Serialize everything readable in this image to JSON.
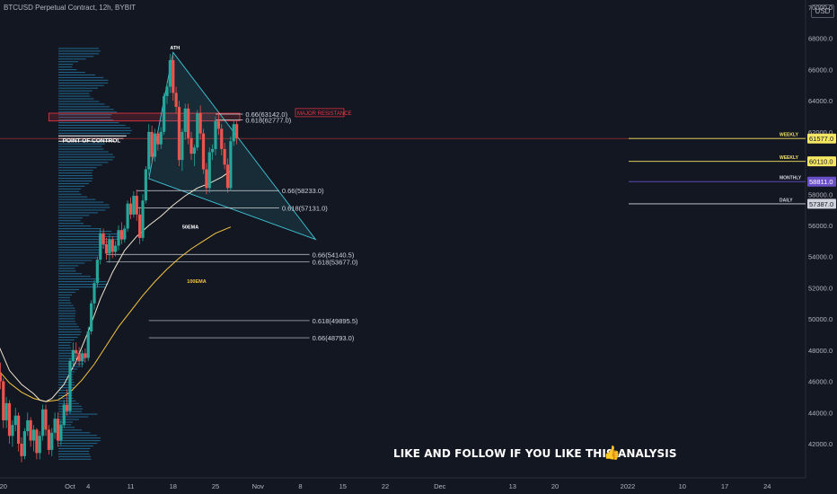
{
  "header": {
    "title": "BTCUSD Perpetual Contract, 12h, BYBIT",
    "currency": "USD"
  },
  "footer_text": "LIKE AND FOLLOW IF YOU LIKE THIS ANALYSIS",
  "chart_data": {
    "type": "candlestick",
    "ylim": [
      40500,
      70000
    ],
    "y_ticks": [
      42000,
      44000,
      46000,
      48000,
      50000,
      52000,
      54000,
      56000,
      58000,
      60000,
      62000,
      64000,
      66000,
      68000,
      70000
    ],
    "y_tick_labels": [
      "42000.0",
      "44000.0",
      "46000.0",
      "48000.0",
      "50000.0",
      "52000.0",
      "54000.0",
      "56000.0",
      "58000.0",
      "60000.0",
      "62000.0",
      "64000.0",
      "66000.0",
      "68000.0",
      "70000.0"
    ],
    "x_ticks": [
      {
        "label": "20",
        "day": -11
      },
      {
        "label": "Oct",
        "day": 0
      },
      {
        "label": "4",
        "day": 3
      },
      {
        "label": "11",
        "day": 10
      },
      {
        "label": "18",
        "day": 17
      },
      {
        "label": "25",
        "day": 24
      },
      {
        "label": "Nov",
        "day": 31
      },
      {
        "label": "8",
        "day": 38
      },
      {
        "label": "15",
        "day": 45
      },
      {
        "label": "22",
        "day": 52
      },
      {
        "label": "Dec",
        "day": 61
      },
      {
        "label": "13",
        "day": 73
      },
      {
        "label": "20",
        "day": 80
      },
      {
        "label": "2022",
        "day": 92
      },
      {
        "label": "10",
        "day": 101
      },
      {
        "label": "17",
        "day": 108
      },
      {
        "label": "24",
        "day": 115
      },
      {
        "label": "Feb",
        "day": 123
      }
    ],
    "current_price_line": 61577,
    "price_labels": [
      {
        "tag": "WEEKLY",
        "value": 61577,
        "label": "61577.0",
        "color": "#f5e663"
      },
      {
        "tag": "WEEKLY",
        "value": 60110,
        "label": "60110.0",
        "color": "#f5e663"
      },
      {
        "tag": "MONTHLY",
        "value": 58811,
        "label": "58811.0",
        "color": "#6a4fc9"
      },
      {
        "tag": "DAILY",
        "value": 57387,
        "label": "57387.0",
        "color": "#d1d4dc"
      }
    ],
    "fib_levels": [
      {
        "label": "0.66(63142.0)",
        "value": 63142,
        "from_day": 24,
        "to_day": 28.5
      },
      {
        "label": "0.618(62777.0)",
        "value": 62777,
        "from_day": 24,
        "to_day": 28.5
      },
      {
        "label": "0.66(58233.0)",
        "value": 58233,
        "from_day": 11,
        "to_day": 34.5
      },
      {
        "label": "0.618(57131.0)",
        "value": 57131,
        "from_day": 11,
        "to_day": 34.5
      },
      {
        "label": "0.66(54140.5)",
        "value": 54140.5,
        "from_day": 6,
        "to_day": 39.5
      },
      {
        "label": "0.618(53677.0)",
        "value": 53677,
        "from_day": 6,
        "to_day": 39.5
      },
      {
        "label": "0.618(49895.5)",
        "value": 49895.5,
        "from_day": 13,
        "to_day": 39.5
      },
      {
        "label": "0.66(48793.0)",
        "value": 48793,
        "from_day": 13,
        "to_day": 39.5
      }
    ],
    "annotations": [
      {
        "text": "ATH",
        "day": 16.5,
        "value": 67300,
        "color": "#ffffff"
      },
      {
        "text": "POINT OF CONTROL",
        "day": -4.2,
        "value": 61500,
        "color": "#ffffff"
      },
      {
        "text": "MAJOR RESISTANCE",
        "day": 28,
        "value": 63150,
        "color": "#f23645"
      },
      {
        "text": "50EMA",
        "day": 18.5,
        "value": 55800,
        "color": "#ffffff"
      },
      {
        "text": "100EMA",
        "day": 19.3,
        "value": 52300,
        "color": "#f5c542"
      }
    ],
    "resistance_zone": {
      "from_day": -3.5,
      "to_day": 28,
      "low": 62700,
      "high": 63200
    },
    "triangle": [
      {
        "day": 17,
        "value": 67100
      },
      {
        "day": 40.5,
        "value": 55100
      },
      {
        "day": 13,
        "value": 59000
      }
    ],
    "ema50": [
      [
        -12,
        48500
      ],
      [
        -10,
        46700
      ],
      [
        -8,
        45800
      ],
      [
        -6,
        45200
      ],
      [
        -5,
        44800
      ],
      [
        -4,
        44700
      ],
      [
        -3,
        44900
      ],
      [
        -1,
        45800
      ],
      [
        1,
        47300
      ],
      [
        3,
        49200
      ],
      [
        5,
        51300
      ],
      [
        7,
        53000
      ],
      [
        9,
        54400
      ],
      [
        11,
        55300
      ],
      [
        13,
        56000
      ],
      [
        15,
        56600
      ],
      [
        17,
        57300
      ],
      [
        19,
        57900
      ],
      [
        21,
        58400
      ],
      [
        23,
        58700
      ],
      [
        25,
        59100
      ],
      [
        26.5,
        59500
      ]
    ],
    "ema100": [
      [
        -12,
        46800
      ],
      [
        -10,
        45900
      ],
      [
        -8,
        45300
      ],
      [
        -6,
        44900
      ],
      [
        -4,
        44700
      ],
      [
        -2,
        44800
      ],
      [
        0,
        45300
      ],
      [
        2,
        46100
      ],
      [
        4,
        47100
      ],
      [
        6,
        48300
      ],
      [
        8,
        49500
      ],
      [
        10,
        50500
      ],
      [
        12,
        51500
      ],
      [
        14,
        52400
      ],
      [
        16,
        53200
      ],
      [
        18,
        53900
      ],
      [
        20,
        54500
      ],
      [
        22,
        55000
      ],
      [
        24,
        55500
      ],
      [
        26.5,
        55900
      ]
    ],
    "candles": [
      [
        -12,
        48000,
        48500,
        46000,
        46500
      ],
      [
        -11.5,
        46500,
        47200,
        45500,
        46000
      ],
      [
        -11,
        46000,
        46200,
        43000,
        43500
      ],
      [
        -10.5,
        43500,
        45000,
        43000,
        44600
      ],
      [
        -10,
        44600,
        44800,
        42000,
        42500
      ],
      [
        -9.5,
        42500,
        43500,
        41800,
        43200
      ],
      [
        -9,
        43200,
        44300,
        42800,
        43800
      ],
      [
        -8.5,
        43800,
        44000,
        41500,
        42000
      ],
      [
        -8,
        42000,
        42400,
        40800,
        41200
      ],
      [
        -7.5,
        41200,
        43000,
        41000,
        42800
      ],
      [
        -7,
        42800,
        44000,
        42500,
        43500
      ],
      [
        -6.5,
        43500,
        43700,
        41800,
        42200
      ],
      [
        -6,
        42200,
        43200,
        41500,
        42900
      ],
      [
        -5.5,
        42900,
        43000,
        41000,
        41400
      ],
      [
        -5,
        41400,
        42800,
        41000,
        42500
      ],
      [
        -4.5,
        42500,
        44500,
        42200,
        44200
      ],
      [
        -4,
        44200,
        44500,
        42500,
        42900
      ],
      [
        -3.5,
        42900,
        43200,
        41300,
        41600
      ],
      [
        -3,
        41600,
        43000,
        41200,
        42700
      ],
      [
        -2.5,
        42700,
        44000,
        42300,
        43600
      ],
      [
        -2,
        43600,
        44000,
        41800,
        42200
      ],
      [
        -1.5,
        42200,
        43500,
        41900,
        43200
      ],
      [
        -1,
        43200,
        44800,
        43000,
        44500
      ],
      [
        -0.5,
        44500,
        45500,
        43800,
        44100
      ],
      [
        0,
        44100,
        47500,
        43900,
        47300
      ],
      [
        0.5,
        47300,
        48500,
        46800,
        48000
      ],
      [
        1,
        48000,
        48500,
        47200,
        47800
      ],
      [
        1.5,
        47800,
        48200,
        47000,
        47300
      ],
      [
        2,
        47300,
        48000,
        46900,
        47800
      ],
      [
        2.5,
        47800,
        48100,
        47200,
        47500
      ],
      [
        3,
        47500,
        49500,
        47300,
        49200
      ],
      [
        3.5,
        49200,
        51200,
        49000,
        51000
      ],
      [
        4,
        51000,
        52500,
        50600,
        52300
      ],
      [
        4.5,
        52300,
        54000,
        52000,
        53800
      ],
      [
        5,
        53800,
        55800,
        53500,
        55500
      ],
      [
        5.5,
        55500,
        55800,
        54500,
        54800
      ],
      [
        6,
        54800,
        55200,
        53800,
        54200
      ],
      [
        6.5,
        54200,
        55400,
        53600,
        55100
      ],
      [
        7,
        55100,
        55300,
        53900,
        54300
      ],
      [
        7.5,
        54300,
        55000,
        54000,
        54700
      ],
      [
        8,
        54700,
        56000,
        54400,
        55700
      ],
      [
        8.5,
        55700,
        56200,
        54800,
        55100
      ],
      [
        9,
        55100,
        56000,
        54900,
        55800
      ],
      [
        9.5,
        55800,
        57600,
        55600,
        57400
      ],
      [
        10,
        57400,
        57800,
        56400,
        56700
      ],
      [
        10.5,
        56700,
        58200,
        56500,
        57900
      ],
      [
        11,
        57900,
        58300,
        56300,
        56700
      ],
      [
        11.5,
        56700,
        57200,
        54800,
        55200
      ],
      [
        12,
        55200,
        58000,
        55000,
        57600
      ],
      [
        12.5,
        57600,
        59800,
        57400,
        59600
      ],
      [
        13,
        59600,
        62500,
        59200,
        62000
      ],
      [
        13.5,
        62000,
        62400,
        60000,
        60400
      ],
      [
        14,
        60400,
        62200,
        60100,
        61900
      ],
      [
        14.5,
        61900,
        62000,
        60800,
        61200
      ],
      [
        15,
        61200,
        62300,
        60900,
        62000
      ],
      [
        15.5,
        62000,
        64500,
        61800,
        64300
      ],
      [
        16,
        64300,
        65200,
        63800,
        64900
      ],
      [
        16.5,
        64900,
        67000,
        64500,
        66600
      ],
      [
        17,
        66600,
        66900,
        64000,
        64500
      ],
      [
        17.5,
        64500,
        64900,
        63200,
        63600
      ],
      [
        18,
        63600,
        64000,
        59800,
        60200
      ],
      [
        18.5,
        60200,
        62200,
        59500,
        62000
      ],
      [
        19,
        62000,
        63800,
        61500,
        63500
      ],
      [
        19.5,
        63500,
        63800,
        61200,
        61600
      ],
      [
        20,
        61600,
        62000,
        60200,
        60600
      ],
      [
        20.5,
        60600,
        61200,
        59800,
        61000
      ],
      [
        21,
        61000,
        63400,
        60800,
        63200
      ],
      [
        21.5,
        63200,
        63700,
        61500,
        61900
      ],
      [
        22,
        61900,
        62200,
        59300,
        59600
      ],
      [
        22.5,
        59600,
        60000,
        58000,
        58400
      ],
      [
        23,
        58400,
        61000,
        58100,
        60700
      ],
      [
        23.5,
        60700,
        61200,
        60200,
        60900
      ],
      [
        24,
        60900,
        63000,
        60500,
        62700
      ],
      [
        24.5,
        62700,
        63300,
        61800,
        62200
      ],
      [
        25,
        62200,
        62500,
        60500,
        60900
      ],
      [
        25.5,
        60900,
        61300,
        59600,
        59900
      ],
      [
        26,
        59900,
        60300,
        58100,
        58400
      ],
      [
        26.5,
        58400,
        61700,
        58200,
        61400
      ],
      [
        27,
        61400,
        62800,
        61100,
        62500
      ],
      [
        27.5,
        62500,
        62700,
        61200,
        61600
      ]
    ]
  }
}
